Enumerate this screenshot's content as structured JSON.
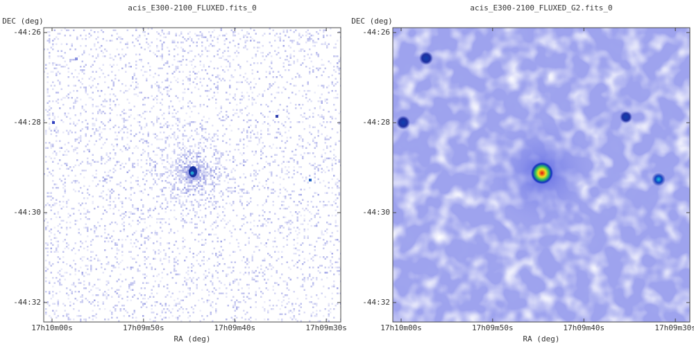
{
  "chart_data": [
    {
      "type": "image",
      "title": "acis_E300-2100_FLUXED.fits_0",
      "x_label": "RA (deg)",
      "y_label": "DEC (deg)",
      "xlim": [
        257.5038,
        257.3684
      ],
      "ylim": [
        -44.5405,
        -44.4315
      ],
      "xticks": [
        {
          "value": 257.5,
          "label": "17h10m00s"
        },
        {
          "value": 257.4583,
          "label": "17h09m50s"
        },
        {
          "value": 257.4167,
          "label": "17h09m40s"
        },
        {
          "value": 257.375,
          "label": "17h09m30s"
        }
      ],
      "yticks": [
        {
          "value": -44.4333,
          "label": "-44:26"
        },
        {
          "value": -44.4667,
          "label": "-44:28"
        },
        {
          "value": -44.5,
          "label": "-44:30"
        },
        {
          "value": -44.5333,
          "label": "-44:32"
        }
      ]
    },
    {
      "type": "image",
      "title": "acis_E300-2100_FLUXED_G2.fits_0",
      "x_label": "RA (deg)",
      "y_label": "DEC (deg)",
      "xlim": [
        257.5038,
        257.3684
      ],
      "ylim": [
        -44.5405,
        -44.4315
      ],
      "xticks": [
        {
          "value": 257.5,
          "label": "17h10m00s"
        },
        {
          "value": 257.4583,
          "label": "17h09m50s"
        },
        {
          "value": 257.4167,
          "label": "17h09m40s"
        },
        {
          "value": 257.375,
          "label": "17h09m30s"
        }
      ],
      "yticks": [
        {
          "value": -44.4333,
          "label": "-44:26"
        },
        {
          "value": -44.4667,
          "label": "-44:28"
        },
        {
          "value": -44.5,
          "label": "-44:30"
        },
        {
          "value": -44.5333,
          "label": "-44:32"
        }
      ]
    }
  ]
}
